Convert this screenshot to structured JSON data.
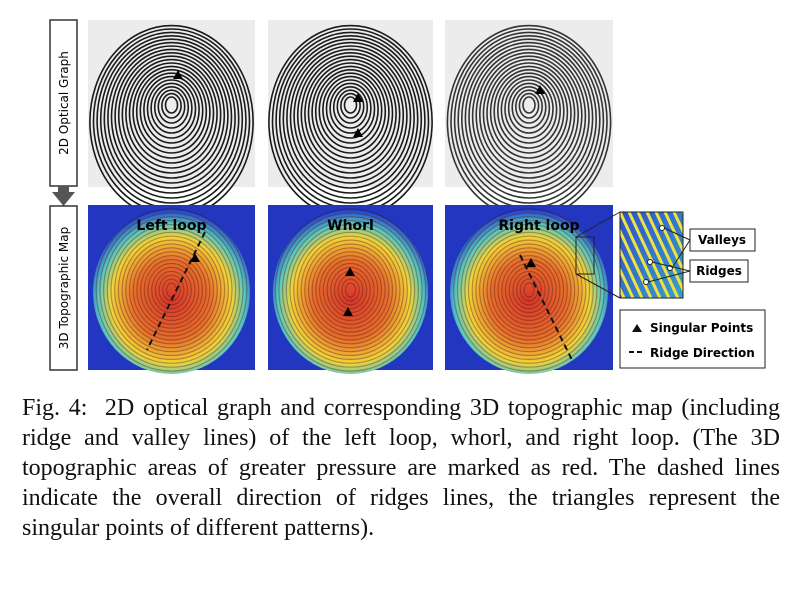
{
  "figure": {
    "row_labels": [
      "2D Optical Graph",
      "3D Topographic Map"
    ],
    "panel_labels": [
      "Left loop",
      "Whorl",
      "Right loop"
    ],
    "inset_labels": [
      "Valleys",
      "Ridges"
    ],
    "legend": [
      "Singular Points",
      "Ridge Direction"
    ],
    "caption": "Fig. 4:  2D optical graph and corresponding 3D topographic map (including ridge and valley lines) of the left loop, whorl, and right loop. (The 3D topographic areas of greater pressure are marked as red. The dashed lines indicate the overall direction of ridges lines, the triangles represent the singular points of different patterns)."
  }
}
